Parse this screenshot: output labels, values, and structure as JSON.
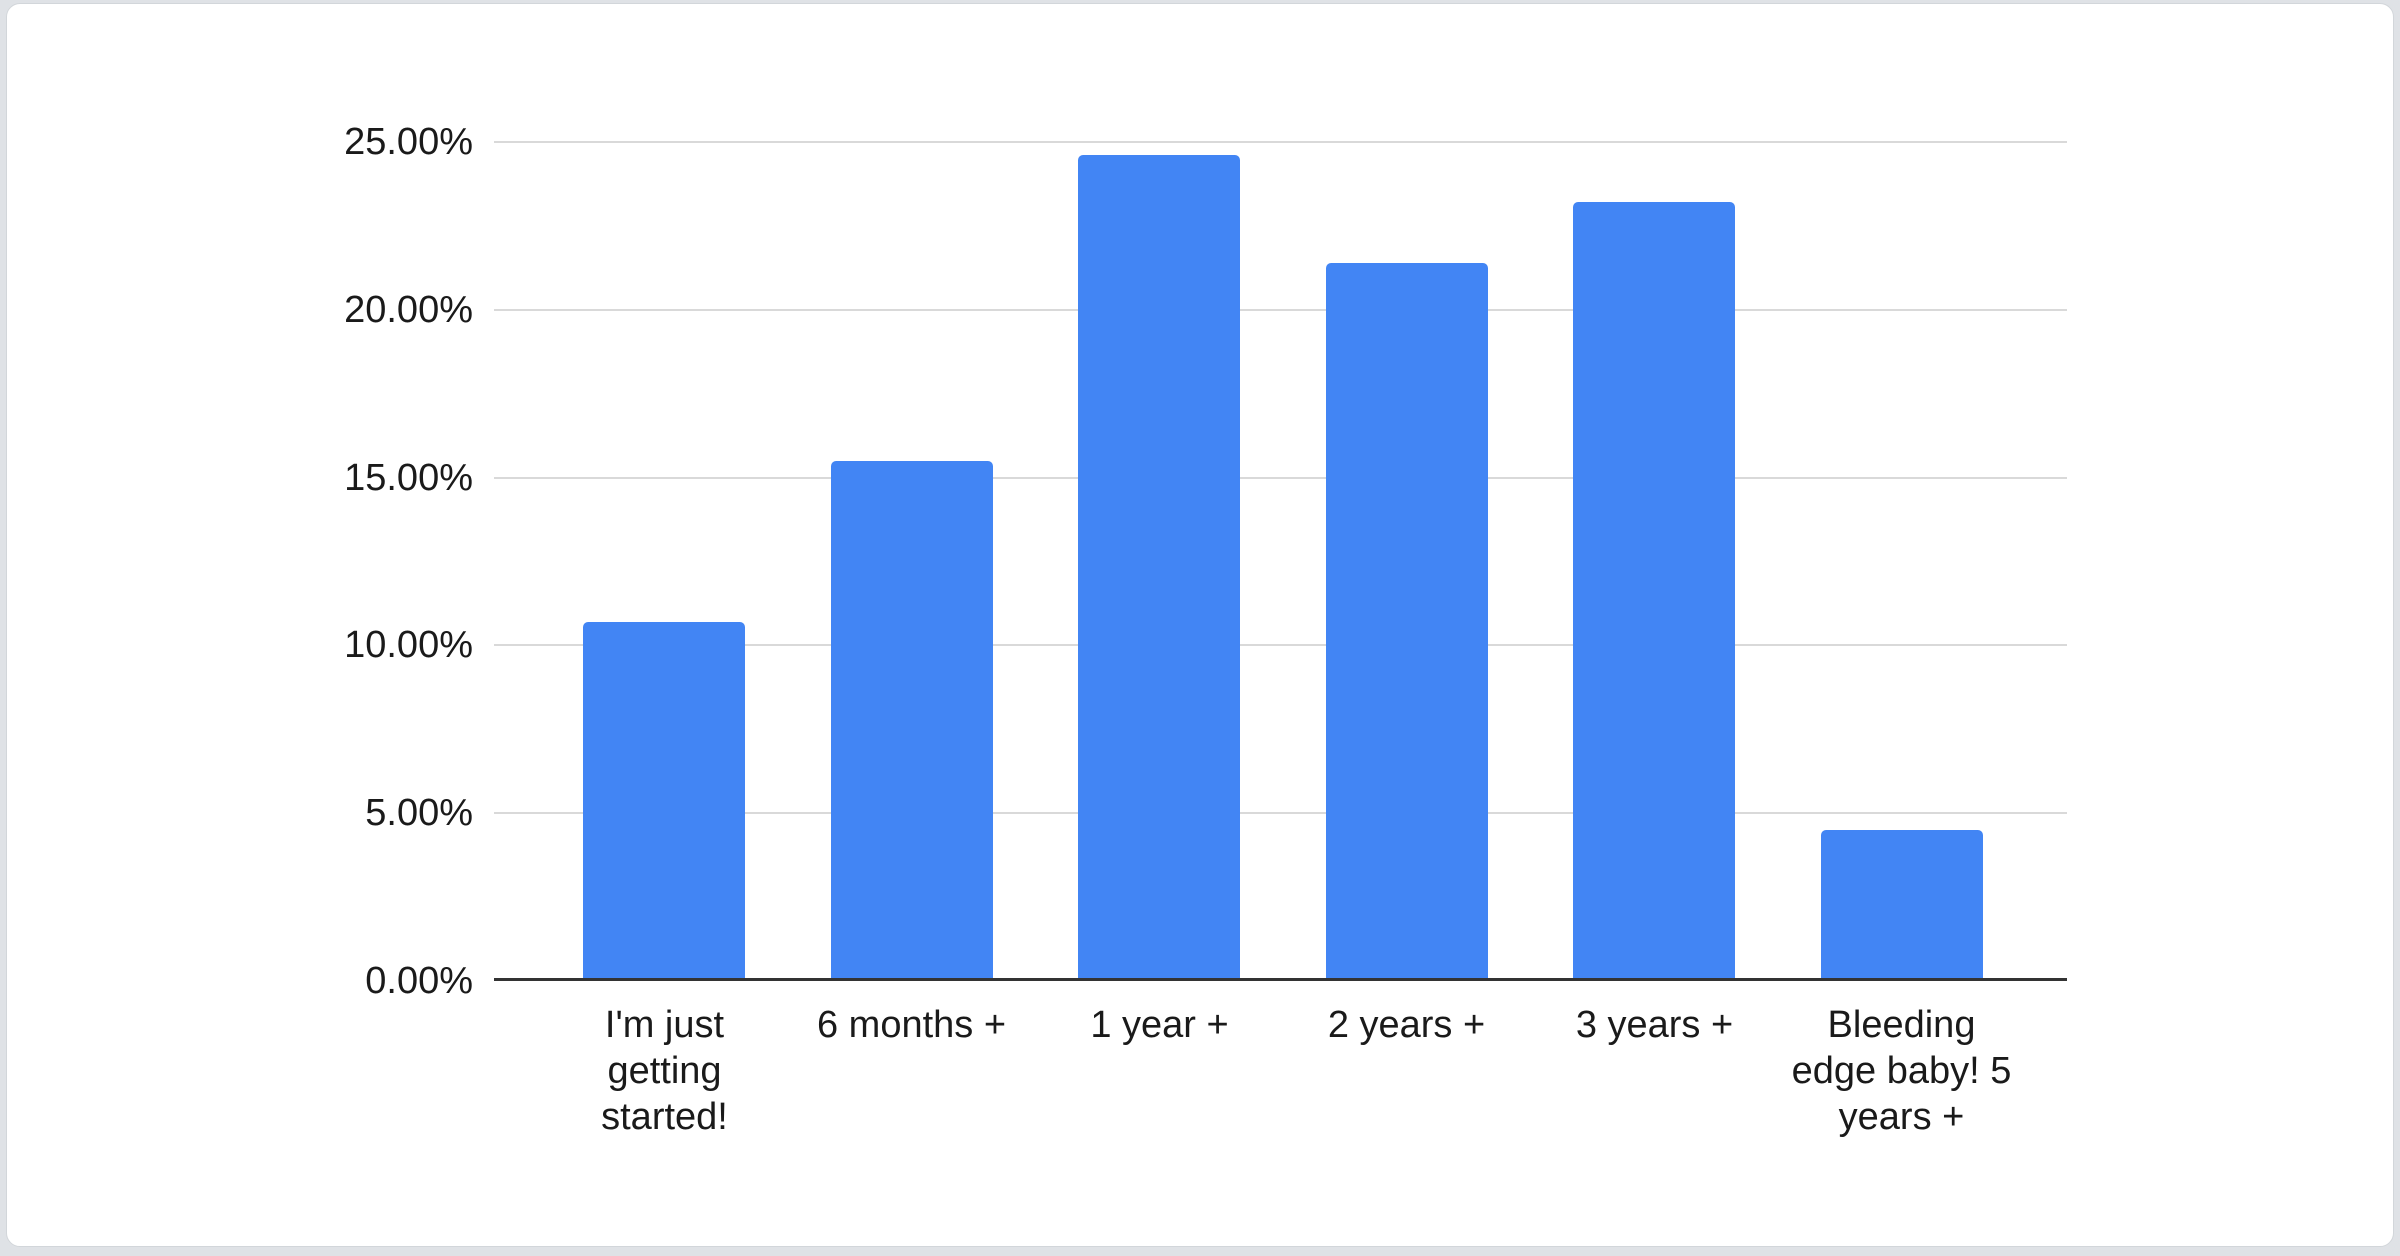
{
  "chart_data": {
    "type": "bar",
    "title": "",
    "xlabel": "",
    "ylabel": "",
    "categories": [
      "I'm just getting started!",
      "6 months +",
      "1 year +",
      "2 years +",
      "3 years +",
      "Bleeding edge baby! 5 years +"
    ],
    "values": [
      10.7,
      15.5,
      24.6,
      21.4,
      23.2,
      4.5
    ],
    "value_unit": "%",
    "ylim": [
      0,
      25
    ],
    "grid": true,
    "legend": "none",
    "yticks": [
      {
        "label": "0.00%",
        "value": 0
      },
      {
        "label": "5.00%",
        "value": 5
      },
      {
        "label": "10.00%",
        "value": 10
      },
      {
        "label": "15.00%",
        "value": 15
      },
      {
        "label": "20.00%",
        "value": 20
      },
      {
        "label": "25.00%",
        "value": 25
      }
    ],
    "bar_color": "#4285F4"
  },
  "colors": {
    "bar": "#4285F4",
    "gridline": "#d9d9d9",
    "axis_baseline": "#333333",
    "label_text": "#1a1a1a",
    "page_background": "#dfe2e6",
    "card_background": "#ffffff",
    "card_border": "#d2d6da"
  }
}
